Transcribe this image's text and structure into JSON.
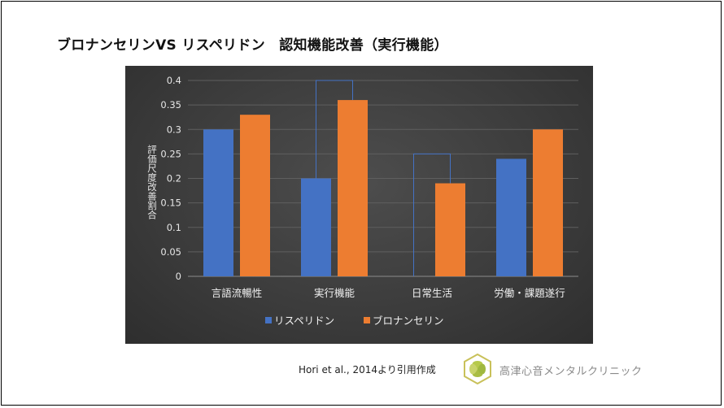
{
  "slide": {
    "title": "ブロナンセリンVS リスペリドン　認知機能改善（実行機能）",
    "citation": "Hori et al., 2014より引用作成",
    "clinic_name": "高津心音メンタルクリニック",
    "logo_icon": "clinic-leaf-logo-icon"
  },
  "chart_data": {
    "type": "bar",
    "title": "",
    "xlabel": "",
    "ylabel": "評価尺度改善割合",
    "categories": [
      "言語流暢性",
      "実行機能",
      "日常生活",
      "労働・課題遂行"
    ],
    "series": [
      {
        "name": "リスペリドン",
        "color": "#4472c4",
        "values": [
          0.3,
          0.2,
          0.0,
          0.24
        ]
      },
      {
        "name": "ブロナンセリン",
        "color": "#ed7d31",
        "values": [
          0.33,
          0.36,
          0.19,
          0.3
        ]
      }
    ],
    "ylim": [
      0,
      0.4
    ],
    "yticks": [
      "0",
      "0.05",
      "0.1",
      "0.15",
      "0.2",
      "0.25",
      "0.3",
      "0.35",
      "0.4"
    ],
    "grid": true,
    "legend_position": "bottom",
    "significance_brackets": [
      {
        "category": "実行機能",
        "level": 0.4
      },
      {
        "category": "日常生活",
        "level": 0.25
      }
    ]
  }
}
